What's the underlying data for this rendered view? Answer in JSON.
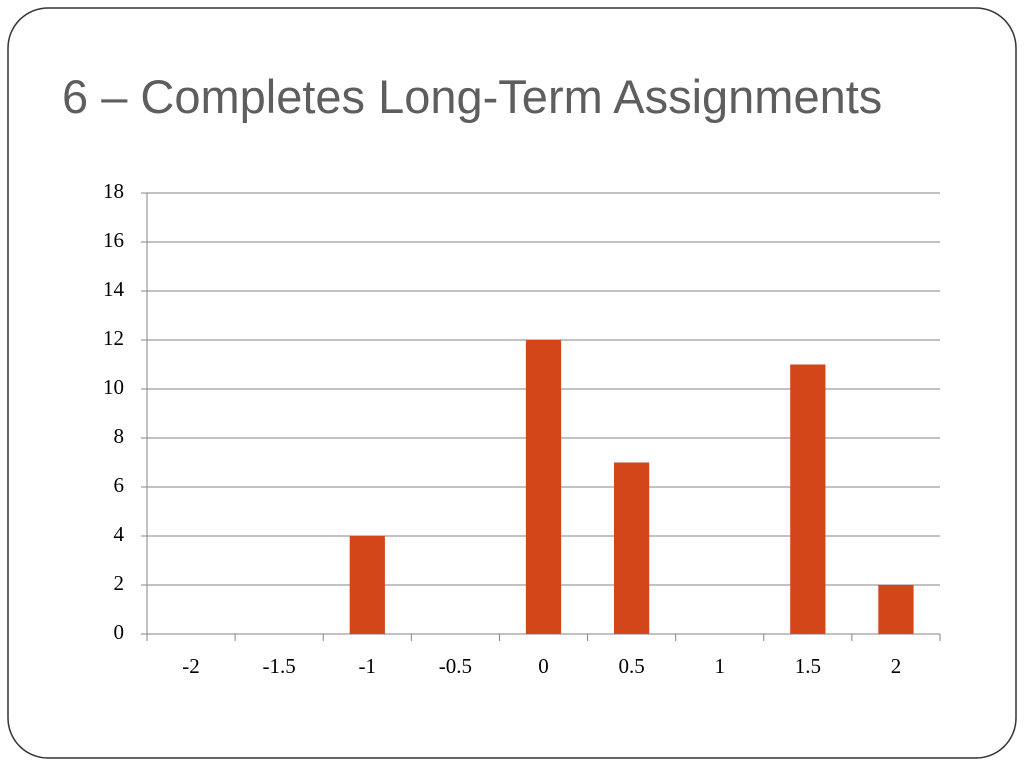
{
  "chart_data": {
    "type": "bar",
    "title": "6 – Completes Long-Term Assignments",
    "categories": [
      "-2",
      "-1.5",
      "-1",
      "-0.5",
      "0",
      "0.5",
      "1",
      "1.5",
      "2"
    ],
    "values": [
      0,
      0,
      4,
      0,
      12,
      7,
      0,
      11,
      2
    ],
    "color": "#d2461a",
    "ylim": [
      0,
      18
    ],
    "yticks": [
      0,
      2,
      4,
      6,
      8,
      10,
      12,
      14,
      16,
      18
    ],
    "grid": true
  }
}
